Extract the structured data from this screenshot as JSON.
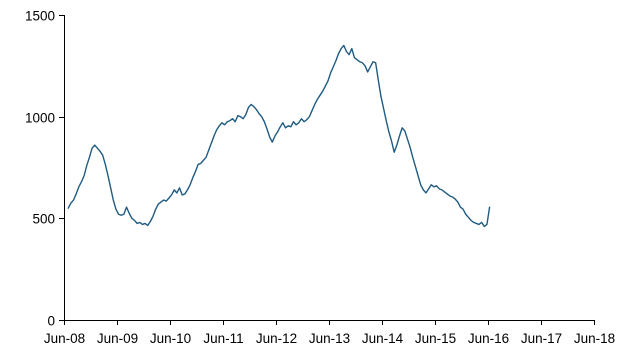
{
  "chart_data": {
    "type": "line",
    "title": "",
    "xlabel": "",
    "ylabel": "",
    "grid": false,
    "legend": "none",
    "xlim": [
      2008.42,
      2018.42
    ],
    "ylim": [
      0,
      1500
    ],
    "x_ticks": [
      {
        "value": 2008.42,
        "label": "Jun-08"
      },
      {
        "value": 2009.42,
        "label": "Jun-09"
      },
      {
        "value": 2010.42,
        "label": "Jun-10"
      },
      {
        "value": 2011.42,
        "label": "Jun-11"
      },
      {
        "value": 2012.42,
        "label": "Jun-12"
      },
      {
        "value": 2013.42,
        "label": "Jun-13"
      },
      {
        "value": 2014.42,
        "label": "Jun-14"
      },
      {
        "value": 2015.42,
        "label": "Jun-15"
      },
      {
        "value": 2016.42,
        "label": "Jun-16"
      },
      {
        "value": 2017.42,
        "label": "Jun-17"
      },
      {
        "value": 2018.42,
        "label": "Jun-18"
      }
    ],
    "y_ticks": [
      {
        "value": 0,
        "label": "0"
      },
      {
        "value": 500,
        "label": "500"
      },
      {
        "value": 1000,
        "label": "1000"
      },
      {
        "value": 1500,
        "label": "1500"
      }
    ],
    "series": [
      {
        "color": "#1f5b82",
        "points": [
          [
            2008.5,
            550
          ],
          [
            2008.55,
            575
          ],
          [
            2008.6,
            590
          ],
          [
            2008.65,
            620
          ],
          [
            2008.7,
            655
          ],
          [
            2008.75,
            680
          ],
          [
            2008.8,
            710
          ],
          [
            2008.85,
            760
          ],
          [
            2008.9,
            800
          ],
          [
            2008.95,
            845
          ],
          [
            2009.0,
            860
          ],
          [
            2009.05,
            845
          ],
          [
            2009.1,
            830
          ],
          [
            2009.15,
            810
          ],
          [
            2009.2,
            765
          ],
          [
            2009.25,
            710
          ],
          [
            2009.3,
            650
          ],
          [
            2009.35,
            590
          ],
          [
            2009.4,
            545
          ],
          [
            2009.45,
            520
          ],
          [
            2009.5,
            515
          ],
          [
            2009.55,
            520
          ],
          [
            2009.6,
            555
          ],
          [
            2009.65,
            525
          ],
          [
            2009.7,
            500
          ],
          [
            2009.75,
            490
          ],
          [
            2009.8,
            475
          ],
          [
            2009.85,
            480
          ],
          [
            2009.9,
            470
          ],
          [
            2009.95,
            475
          ],
          [
            2010.0,
            465
          ],
          [
            2010.05,
            485
          ],
          [
            2010.1,
            510
          ],
          [
            2010.15,
            545
          ],
          [
            2010.2,
            570
          ],
          [
            2010.25,
            580
          ],
          [
            2010.3,
            590
          ],
          [
            2010.35,
            585
          ],
          [
            2010.4,
            600
          ],
          [
            2010.45,
            615
          ],
          [
            2010.5,
            640
          ],
          [
            2010.55,
            625
          ],
          [
            2010.6,
            650
          ],
          [
            2010.65,
            615
          ],
          [
            2010.7,
            620
          ],
          [
            2010.75,
            640
          ],
          [
            2010.8,
            665
          ],
          [
            2010.85,
            700
          ],
          [
            2010.9,
            730
          ],
          [
            2010.95,
            765
          ],
          [
            2011.0,
            770
          ],
          [
            2011.05,
            785
          ],
          [
            2011.1,
            800
          ],
          [
            2011.15,
            835
          ],
          [
            2011.2,
            870
          ],
          [
            2011.25,
            905
          ],
          [
            2011.3,
            935
          ],
          [
            2011.35,
            955
          ],
          [
            2011.4,
            970
          ],
          [
            2011.45,
            960
          ],
          [
            2011.5,
            975
          ],
          [
            2011.55,
            980
          ],
          [
            2011.6,
            990
          ],
          [
            2011.65,
            975
          ],
          [
            2011.7,
            1005
          ],
          [
            2011.75,
            1000
          ],
          [
            2011.8,
            990
          ],
          [
            2011.85,
            1010
          ],
          [
            2011.9,
            1045
          ],
          [
            2011.95,
            1060
          ],
          [
            2012.0,
            1050
          ],
          [
            2012.05,
            1035
          ],
          [
            2012.1,
            1015
          ],
          [
            2012.15,
            1000
          ],
          [
            2012.2,
            975
          ],
          [
            2012.25,
            940
          ],
          [
            2012.3,
            900
          ],
          [
            2012.35,
            875
          ],
          [
            2012.4,
            905
          ],
          [
            2012.45,
            925
          ],
          [
            2012.5,
            950
          ],
          [
            2012.55,
            970
          ],
          [
            2012.6,
            945
          ],
          [
            2012.65,
            955
          ],
          [
            2012.7,
            950
          ],
          [
            2012.75,
            975
          ],
          [
            2012.8,
            960
          ],
          [
            2012.85,
            970
          ],
          [
            2012.9,
            990
          ],
          [
            2012.95,
            975
          ],
          [
            2013.0,
            985
          ],
          [
            2013.05,
            1000
          ],
          [
            2013.1,
            1030
          ],
          [
            2013.15,
            1060
          ],
          [
            2013.2,
            1085
          ],
          [
            2013.25,
            1105
          ],
          [
            2013.3,
            1125
          ],
          [
            2013.35,
            1150
          ],
          [
            2013.4,
            1175
          ],
          [
            2013.45,
            1215
          ],
          [
            2013.5,
            1245
          ],
          [
            2013.55,
            1275
          ],
          [
            2013.6,
            1310
          ],
          [
            2013.65,
            1335
          ],
          [
            2013.7,
            1350
          ],
          [
            2013.75,
            1320
          ],
          [
            2013.8,
            1305
          ],
          [
            2013.85,
            1335
          ],
          [
            2013.9,
            1290
          ],
          [
            2013.95,
            1280
          ],
          [
            2014.0,
            1270
          ],
          [
            2014.05,
            1265
          ],
          [
            2014.1,
            1250
          ],
          [
            2014.15,
            1220
          ],
          [
            2014.2,
            1245
          ],
          [
            2014.25,
            1270
          ],
          [
            2014.3,
            1265
          ],
          [
            2014.35,
            1180
          ],
          [
            2014.4,
            1100
          ],
          [
            2014.45,
            1040
          ],
          [
            2014.5,
            980
          ],
          [
            2014.55,
            925
          ],
          [
            2014.6,
            880
          ],
          [
            2014.65,
            825
          ],
          [
            2014.7,
            860
          ],
          [
            2014.75,
            905
          ],
          [
            2014.8,
            945
          ],
          [
            2014.85,
            930
          ],
          [
            2014.9,
            890
          ],
          [
            2014.95,
            850
          ],
          [
            2015.0,
            800
          ],
          [
            2015.05,
            755
          ],
          [
            2015.1,
            710
          ],
          [
            2015.15,
            665
          ],
          [
            2015.2,
            640
          ],
          [
            2015.25,
            625
          ],
          [
            2015.3,
            645
          ],
          [
            2015.35,
            665
          ],
          [
            2015.4,
            655
          ],
          [
            2015.45,
            660
          ],
          [
            2015.5,
            645
          ],
          [
            2015.55,
            640
          ],
          [
            2015.6,
            630
          ],
          [
            2015.65,
            620
          ],
          [
            2015.7,
            610
          ],
          [
            2015.75,
            605
          ],
          [
            2015.8,
            595
          ],
          [
            2015.85,
            580
          ],
          [
            2015.9,
            555
          ],
          [
            2015.95,
            545
          ],
          [
            2016.0,
            520
          ],
          [
            2016.05,
            505
          ],
          [
            2016.1,
            490
          ],
          [
            2016.15,
            480
          ],
          [
            2016.2,
            475
          ],
          [
            2016.25,
            470
          ],
          [
            2016.3,
            480
          ],
          [
            2016.35,
            460
          ],
          [
            2016.4,
            470
          ],
          [
            2016.45,
            555
          ]
        ]
      }
    ]
  }
}
